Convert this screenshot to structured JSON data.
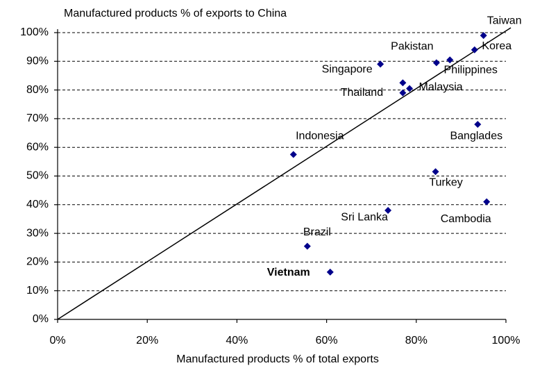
{
  "chart_data": {
    "type": "scatter",
    "title": "Manufactured products % of exports to China",
    "x_label": "Manufactured products % of total exports",
    "series": [
      {
        "color": "#00008b",
        "labels": [
          "Taiwan",
          "Korea",
          "Philippines",
          "Pakistan",
          "Singapore",
          null,
          "Malaysia",
          "Thailand",
          "Indonesia",
          "Banglades",
          "Turkey",
          "Cambodia",
          "Sri Lanka",
          "Brazil",
          "Vietnam"
        ],
        "x": [
          95,
          93,
          87.5,
          84.5,
          72,
          77,
          78.5,
          77,
          52.6,
          93.7,
          84.3,
          95.7,
          73.7,
          55.7,
          60.8
        ],
        "values": [
          99,
          94,
          90.5,
          89.5,
          89,
          82.5,
          80.5,
          79,
          57.5,
          68,
          51.5,
          41,
          38,
          25.5,
          16.5
        ]
      }
    ],
    "xlim": [
      0,
      100
    ],
    "ylim": [
      0,
      100
    ],
    "xticks": [
      {
        "value": 0,
        "label": "0%"
      },
      {
        "value": 20,
        "label": "20%"
      },
      {
        "value": 40,
        "label": "40%"
      },
      {
        "value": 60,
        "label": "60%"
      },
      {
        "value": 80,
        "label": "80%"
      },
      {
        "value": 100,
        "label": "100%"
      }
    ],
    "yticks": [
      {
        "value": 0,
        "label": "0%"
      },
      {
        "value": 10,
        "label": "10%"
      },
      {
        "value": 20,
        "label": "20%"
      },
      {
        "value": 30,
        "label": "30%"
      },
      {
        "value": 40,
        "label": "40%"
      },
      {
        "value": 50,
        "label": "50%"
      },
      {
        "value": 60,
        "label": "60%"
      },
      {
        "value": 70,
        "label": "70%"
      },
      {
        "value": 80,
        "label": "80%"
      },
      {
        "value": 90,
        "label": "90%"
      },
      {
        "value": 100,
        "label": "100%"
      }
    ],
    "grid": true
  }
}
